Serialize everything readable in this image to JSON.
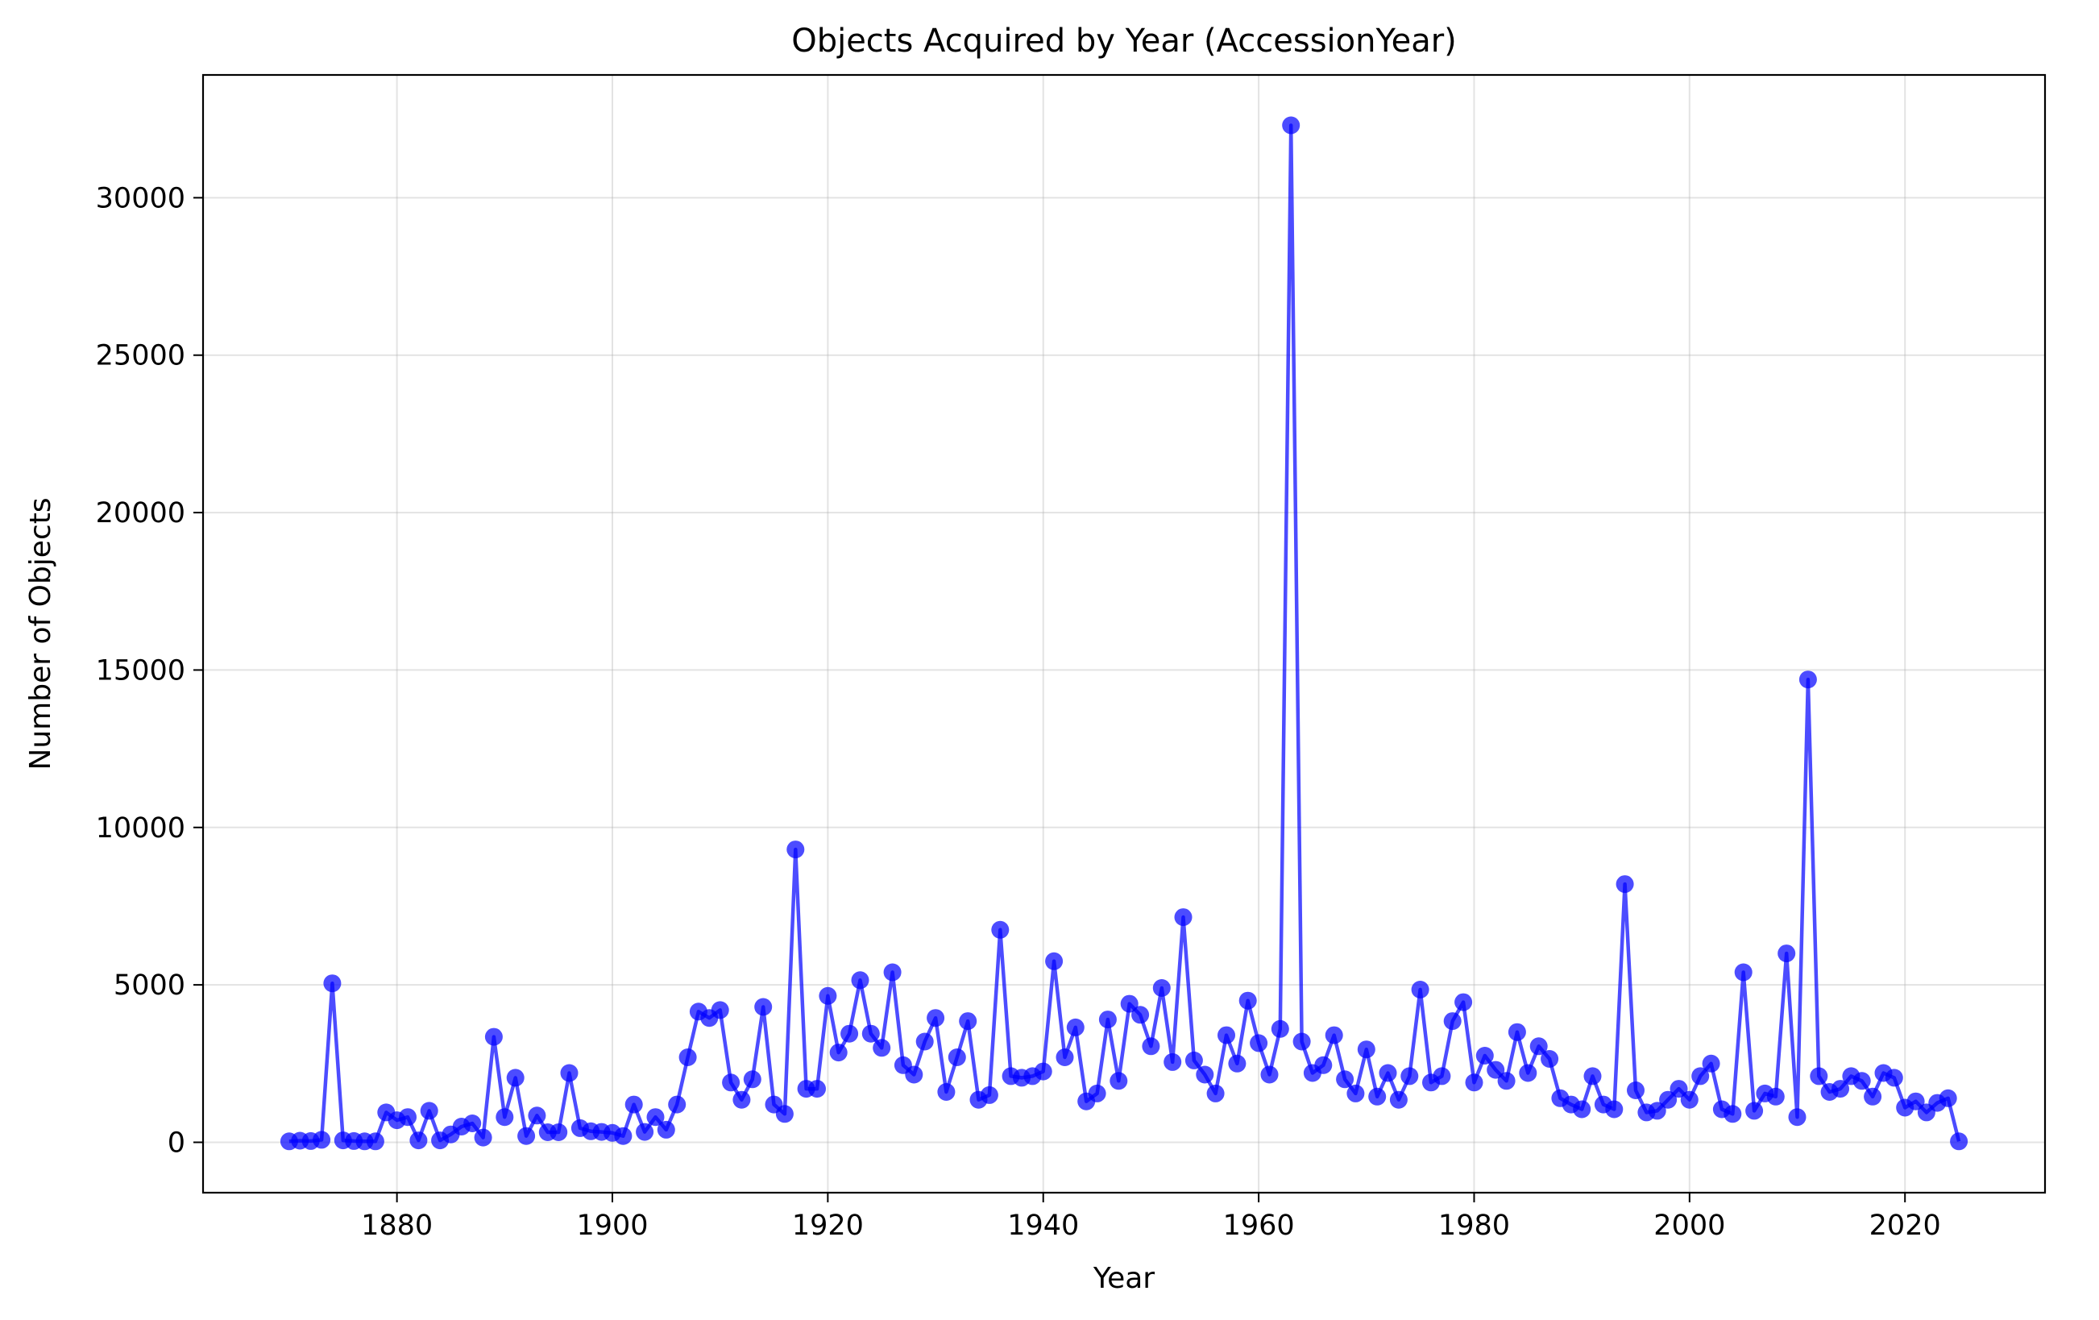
{
  "chart_data": {
    "type": "line",
    "title": "Objects Acquired by Year (AccessionYear)",
    "xlabel": "Year",
    "ylabel": "Number of Objects",
    "xlim": [
      1862,
      2033
    ],
    "ylim": [
      -1600,
      33900
    ],
    "xticks": [
      1880,
      1900,
      1920,
      1940,
      1960,
      1980,
      2000,
      2020
    ],
    "yticks": [
      0,
      5000,
      10000,
      15000,
      20000,
      25000,
      30000
    ],
    "grid": true,
    "legend": "none",
    "series_color": "#0000ff",
    "x": [
      1870,
      1871,
      1872,
      1873,
      1874,
      1875,
      1876,
      1877,
      1878,
      1879,
      1880,
      1881,
      1882,
      1883,
      1884,
      1885,
      1886,
      1887,
      1888,
      1889,
      1890,
      1891,
      1892,
      1893,
      1894,
      1895,
      1896,
      1897,
      1898,
      1899,
      1900,
      1901,
      1902,
      1903,
      1904,
      1905,
      1906,
      1907,
      1908,
      1909,
      1910,
      1911,
      1912,
      1913,
      1914,
      1915,
      1916,
      1917,
      1918,
      1919,
      1920,
      1921,
      1922,
      1923,
      1924,
      1925,
      1926,
      1927,
      1928,
      1929,
      1930,
      1931,
      1932,
      1933,
      1934,
      1935,
      1936,
      1937,
      1938,
      1939,
      1940,
      1941,
      1942,
      1943,
      1944,
      1945,
      1946,
      1947,
      1948,
      1949,
      1950,
      1951,
      1952,
      1953,
      1954,
      1955,
      1956,
      1957,
      1958,
      1959,
      1960,
      1961,
      1962,
      1963,
      1964,
      1965,
      1966,
      1967,
      1968,
      1969,
      1970,
      1971,
      1972,
      1973,
      1974,
      1975,
      1976,
      1977,
      1978,
      1979,
      1980,
      1981,
      1982,
      1983,
      1984,
      1985,
      1986,
      1987,
      1988,
      1989,
      1990,
      1991,
      1992,
      1993,
      1994,
      1995,
      1996,
      1997,
      1998,
      1999,
      2000,
      2001,
      2002,
      2003,
      2004,
      2005,
      2006,
      2007,
      2008,
      2009,
      2010,
      2011,
      2012,
      2013,
      2014,
      2015,
      2016,
      2017,
      2018,
      2019,
      2020,
      2021,
      2022,
      2023,
      2024,
      2025
    ],
    "values": [
      30,
      50,
      40,
      80,
      5050,
      60,
      40,
      30,
      30,
      950,
      700,
      800,
      60,
      1000,
      60,
      250,
      500,
      600,
      150,
      3350,
      800,
      2050,
      200,
      850,
      320,
      320,
      2200,
      450,
      350,
      330,
      300,
      200,
      1200,
      330,
      800,
      400,
      1200,
      2700,
      4150,
      3950,
      4200,
      1900,
      1350,
      2000,
      4300,
      1200,
      900,
      9300,
      1700,
      1700,
      4650,
      2850,
      3450,
      5150,
      3450,
      3000,
      5400,
      2450,
      2150,
      3200,
      3950,
      1600,
      2700,
      3850,
      1350,
      1500,
      6750,
      2100,
      2050,
      2100,
      2250,
      5750,
      2700,
      3650,
      1300,
      1550,
      3900,
      1950,
      4400,
      4050,
      3050,
      4900,
      2550,
      7150,
      2600,
      2150,
      1550,
      3400,
      2500,
      4500,
      3150,
      2150,
      3600,
      32300,
      3200,
      2200,
      2450,
      3400,
      2000,
      1550,
      2950,
      1450,
      2200,
      1350,
      2100,
      4850,
      1900,
      2100,
      3850,
      4450,
      1900,
      2750,
      2300,
      1950,
      3500,
      2200,
      3050,
      2650,
      1400,
      1200,
      1050,
      2100,
      1200,
      1050,
      8200,
      1650,
      950,
      1000,
      1350,
      1700,
      1350,
      2100,
      2500,
      1050,
      900,
      5400,
      1000,
      1550,
      1450,
      6000,
      800,
      14700,
      2100,
      1600,
      1700,
      2100,
      1950,
      1450,
      2200,
      2050,
      1100,
      1300,
      950,
      1250,
      1400,
      30
    ]
  }
}
